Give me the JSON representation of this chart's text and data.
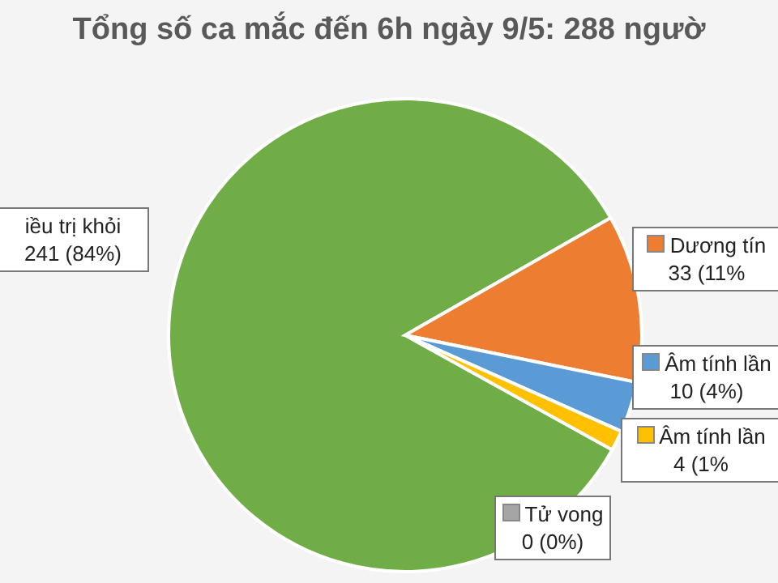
{
  "chart_data": {
    "type": "pie",
    "title": "Tổng số ca mắc đến 6h ngày 9/5: 288 ngườ",
    "categories": [
      "iều trị khỏi",
      "Dương tín",
      "Âm tính lần",
      "Âm tính lần",
      "Tử vong"
    ],
    "values": [
      241,
      33,
      10,
      4,
      0
    ],
    "colors": [
      "#70ad47",
      "#ed7d31",
      "#5b9bd5",
      "#ffc000",
      "#a5a5a5"
    ],
    "value_labels": [
      "241 (84%)",
      "33 (11%",
      "10 (4%)",
      "4 (1%",
      "0 (0%)"
    ],
    "legend": "right"
  }
}
